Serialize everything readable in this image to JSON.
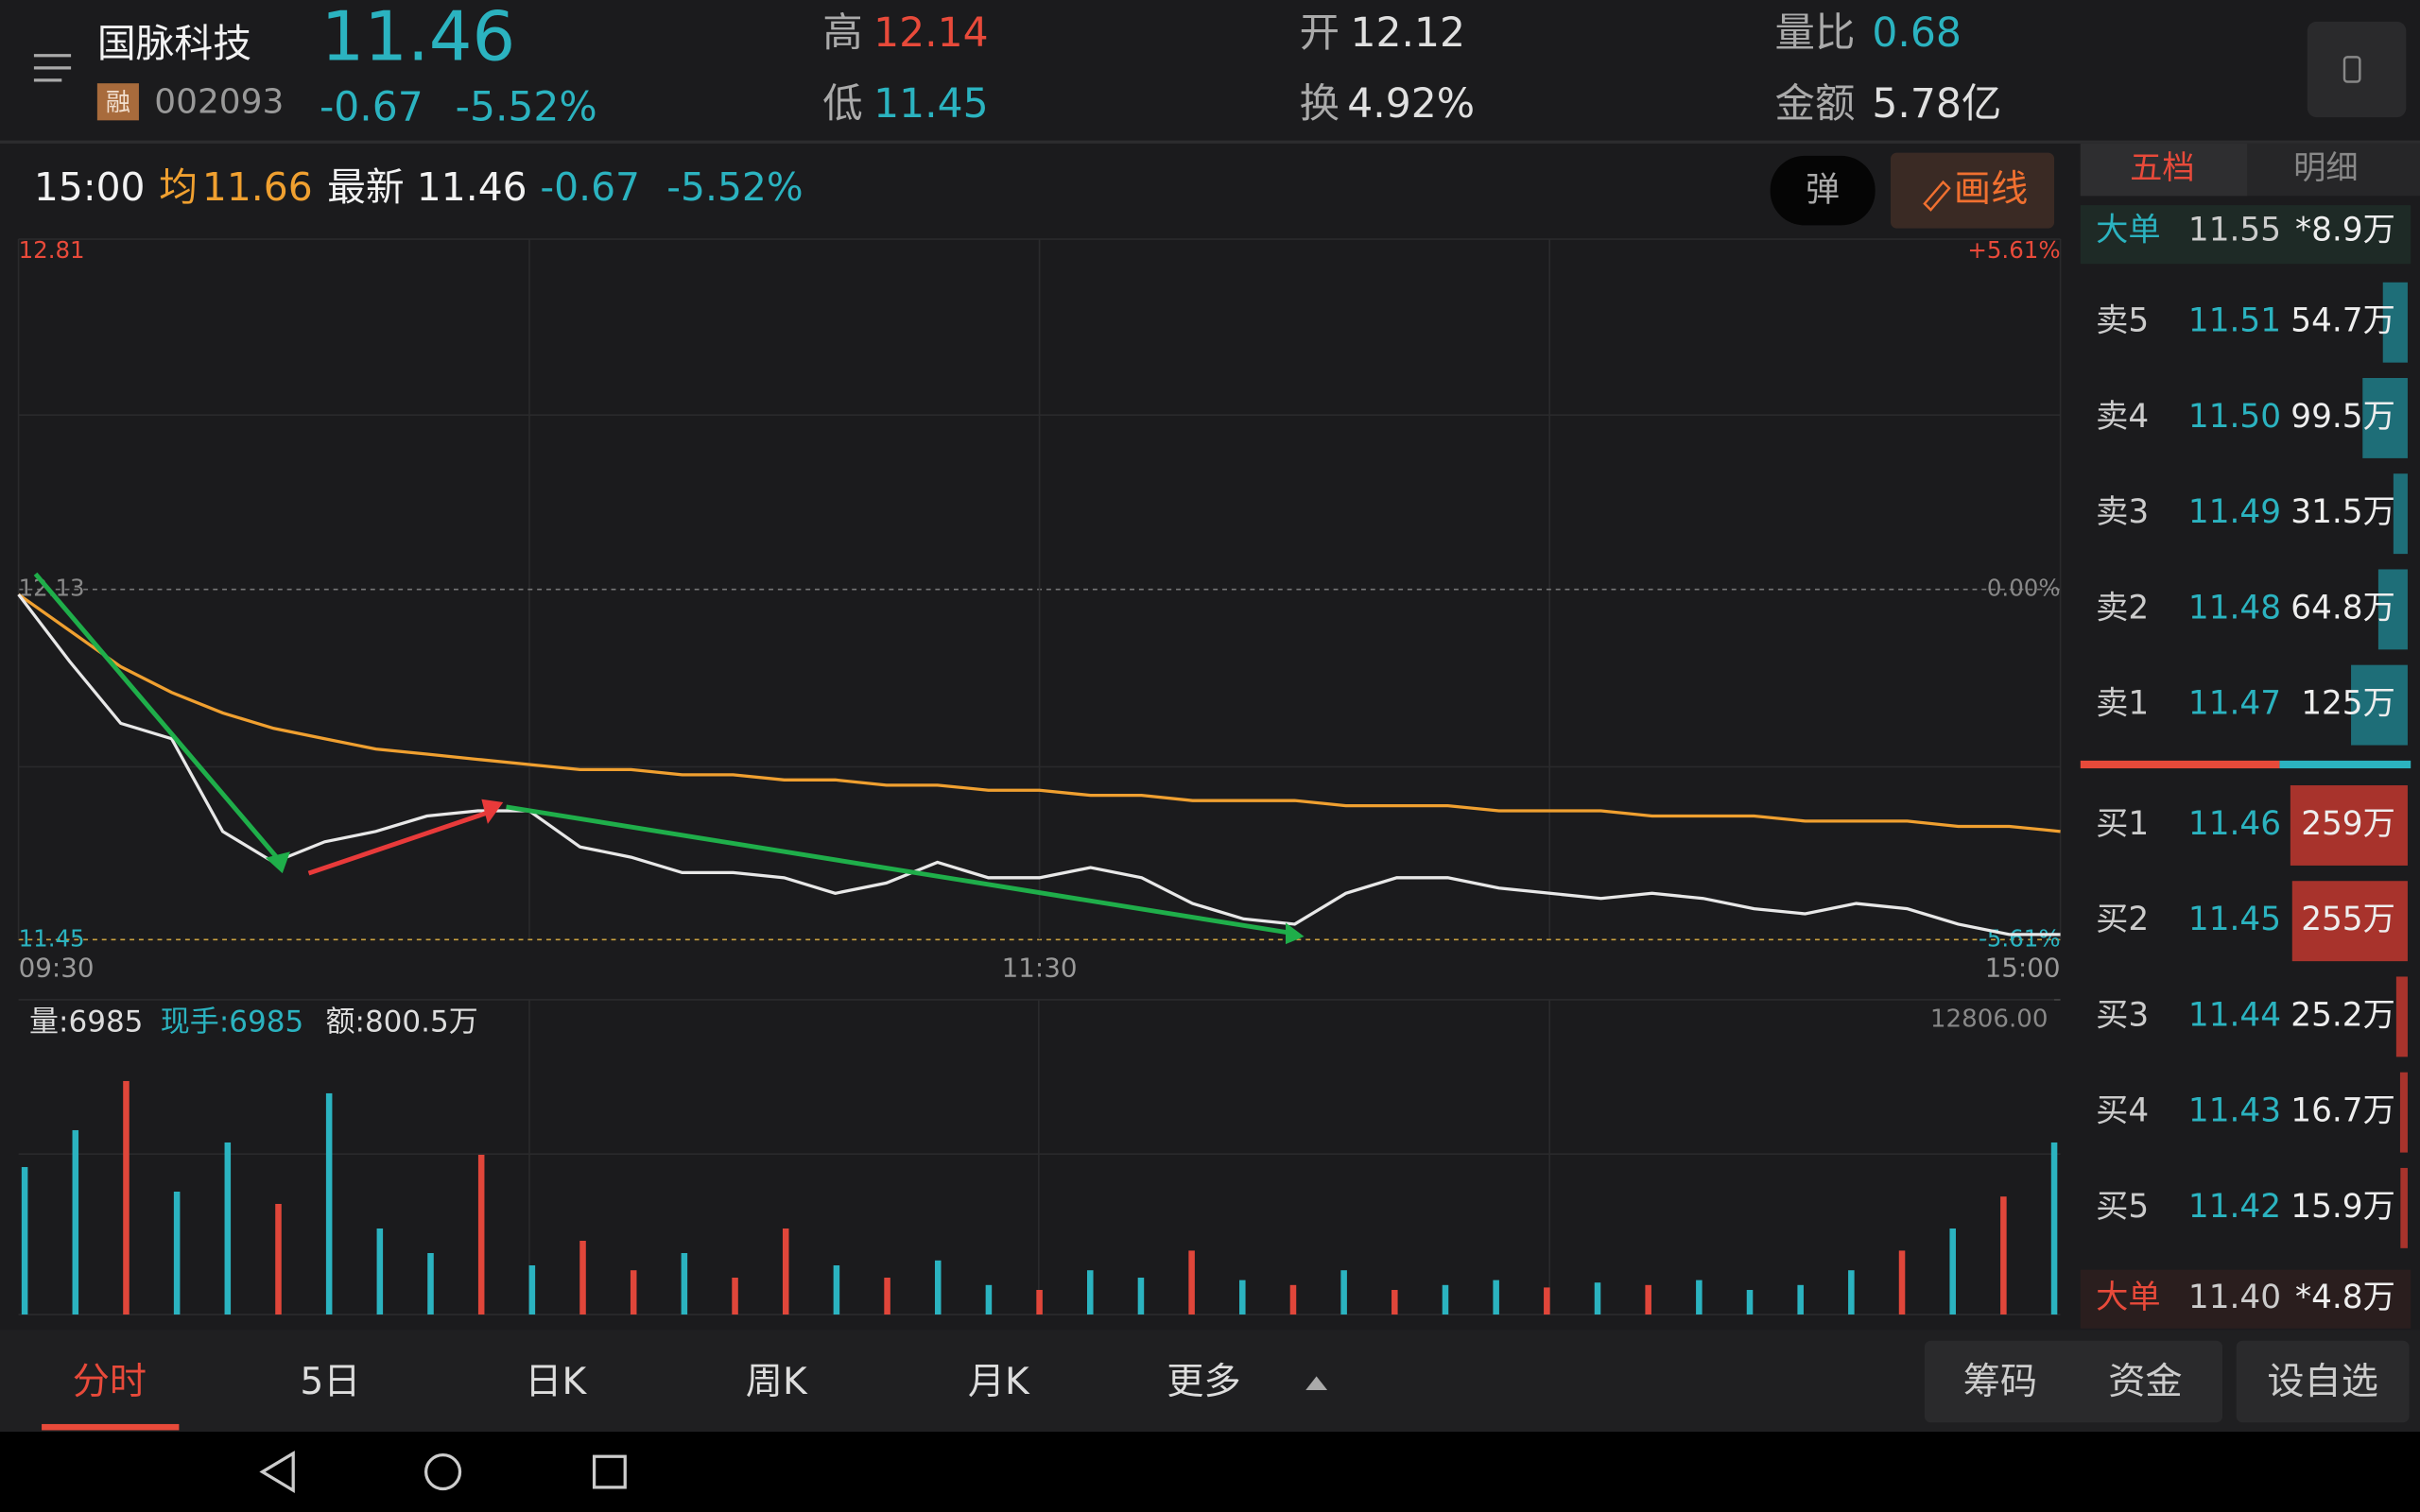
{
  "header": {
    "name": "国脉科技",
    "tag": "融",
    "code": "002093",
    "price": "11.46",
    "change": "-0.67",
    "change_pct": "-5.52%",
    "high_label": "高",
    "high": "12.14",
    "low_label": "低",
    "low": "11.45",
    "open_label": "开",
    "open": "12.12",
    "turnover_label": "换",
    "turnover": "4.92%",
    "ratio_label": "量比",
    "ratio": "0.68",
    "amount_label": "金额",
    "amount": "5.78亿"
  },
  "info_bar": {
    "time": "15:00",
    "avg_label": "均",
    "avg": "11.66",
    "latest_label": "最新",
    "latest": "11.46",
    "change": "-0.67",
    "change_pct": "-5.52%",
    "float_button": "弹",
    "draw_button": "画线"
  },
  "chart_data": [
    {
      "type": "line",
      "x": [
        0,
        6,
        12,
        18,
        24,
        30,
        36,
        42,
        48,
        54,
        60,
        66,
        72,
        78,
        84,
        90,
        96,
        102,
        108,
        114,
        120,
        126,
        132,
        138,
        144,
        150,
        156,
        162,
        168,
        174,
        180,
        186,
        192,
        198,
        204,
        210,
        216,
        222,
        228,
        234,
        240
      ],
      "xlim": [
        0,
        240
      ],
      "xticks": [
        {
          "value": 0,
          "label": "09:30"
        },
        {
          "value": 120,
          "label": "11:30"
        },
        {
          "value": 240,
          "label": "15:00"
        }
      ],
      "ylim": [
        11.45,
        12.81
      ],
      "yticks": [
        11.45,
        12.13,
        12.81
      ],
      "y2lim": [
        -5.61,
        5.61
      ],
      "y2ticks": [
        {
          "value": -5.61,
          "label": "-5.61%"
        },
        {
          "value": 0,
          "label": "0.00%"
        },
        {
          "value": 5.61,
          "label": "+5.61%"
        }
      ],
      "series": [
        {
          "color": "#e8e8e8",
          "values": [
            12.12,
            11.99,
            11.87,
            11.84,
            11.66,
            11.6,
            11.64,
            11.66,
            11.69,
            11.7,
            11.7,
            11.63,
            11.61,
            11.58,
            11.58,
            11.57,
            11.54,
            11.56,
            11.6,
            11.57,
            11.57,
            11.59,
            11.57,
            11.52,
            11.49,
            11.48,
            11.54,
            11.57,
            11.57,
            11.55,
            11.54,
            11.53,
            11.54,
            11.53,
            11.51,
            11.5,
            11.52,
            11.51,
            11.48,
            11.46,
            11.46
          ]
        },
        {
          "color": "#f0a030",
          "values": [
            12.12,
            12.05,
            11.98,
            11.93,
            11.89,
            11.86,
            11.84,
            11.82,
            11.81,
            11.8,
            11.79,
            11.78,
            11.78,
            11.77,
            11.77,
            11.76,
            11.76,
            11.75,
            11.75,
            11.74,
            11.74,
            11.73,
            11.73,
            11.72,
            11.72,
            11.72,
            11.71,
            11.71,
            11.71,
            11.7,
            11.7,
            11.7,
            11.69,
            11.69,
            11.69,
            11.68,
            11.68,
            11.68,
            11.67,
            11.67,
            11.66
          ]
        }
      ]
    },
    {
      "type": "bar",
      "volume_label": "量:6985",
      "hand_label": "现手:6985",
      "amount_label": "额:800.5万",
      "x": [
        0,
        6,
        12,
        18,
        24,
        30,
        36,
        42,
        48,
        54,
        60,
        66,
        72,
        78,
        84,
        90,
        96,
        102,
        108,
        114,
        120,
        126,
        132,
        138,
        144,
        150,
        156,
        162,
        168,
        174,
        180,
        186,
        192,
        198,
        204,
        210,
        216,
        222,
        228,
        234,
        240
      ],
      "xlim": [
        0,
        240
      ],
      "ylim": [
        0,
        12806
      ],
      "yticks": [
        {
          "value": 12806,
          "label": "12806.00"
        }
      ],
      "values": [
        6000,
        7500,
        9500,
        5000,
        7000,
        4500,
        9000,
        3500,
        2500,
        6500,
        2000,
        3000,
        1800,
        2500,
        1500,
        3500,
        2000,
        1500,
        2200,
        1200,
        1000,
        1800,
        1500,
        2600,
        1400,
        1200,
        1800,
        1000,
        1200,
        1400,
        1100,
        1300,
        1200,
        1400,
        1000,
        1200,
        1800,
        2600,
        3500,
        4800,
        7000
      ],
      "colors": [
        "#2bb3c0",
        "#2bb3c0",
        "#e0463a",
        "#2bb3c0",
        "#2bb3c0",
        "#e0463a",
        "#2bb3c0",
        "#2bb3c0",
        "#2bb3c0",
        "#e0463a",
        "#2bb3c0",
        "#e0463a",
        "#e0463a",
        "#2bb3c0",
        "#e0463a",
        "#e0463a",
        "#2bb3c0",
        "#e0463a",
        "#2bb3c0",
        "#2bb3c0",
        "#e0463a",
        "#2bb3c0",
        "#2bb3c0",
        "#e0463a",
        "#2bb3c0",
        "#e0463a",
        "#2bb3c0",
        "#e0463a",
        "#2bb3c0",
        "#2bb3c0",
        "#e0463a",
        "#2bb3c0",
        "#e0463a",
        "#2bb3c0",
        "#2bb3c0",
        "#2bb3c0",
        "#2bb3c0",
        "#e0463a",
        "#2bb3c0",
        "#e0463a",
        "#2bb3c0"
      ]
    }
  ],
  "order_book": {
    "tabs": [
      "五档",
      "明细"
    ],
    "big_sell": {
      "label": "大单",
      "price": "11.55",
      "volume": "*8.9万"
    },
    "asks": [
      {
        "label": "卖5",
        "price": "11.51",
        "volume": 54.7,
        "volume_label": "54.7万"
      },
      {
        "label": "卖4",
        "price": "11.50",
        "volume": 99.5,
        "volume_label": "99.5万"
      },
      {
        "label": "卖3",
        "price": "11.49",
        "volume": 31.5,
        "volume_label": "31.5万"
      },
      {
        "label": "卖2",
        "price": "11.48",
        "volume": 64.8,
        "volume_label": "64.8万"
      },
      {
        "label": "卖1",
        "price": "11.47",
        "volume": 125,
        "volume_label": "125万"
      }
    ],
    "bids": [
      {
        "label": "买1",
        "price": "11.46",
        "volume": 259,
        "volume_label": "259万"
      },
      {
        "label": "买2",
        "price": "11.45",
        "volume": 255,
        "volume_label": "255万"
      },
      {
        "label": "买3",
        "price": "11.44",
        "volume": 25.2,
        "volume_label": "25.2万"
      },
      {
        "label": "买4",
        "price": "11.43",
        "volume": 16.7,
        "volume_label": "16.7万"
      },
      {
        "label": "买5",
        "price": "11.42",
        "volume": 15.9,
        "volume_label": "15.9万"
      }
    ],
    "big_buy": {
      "label": "大单",
      "price": "11.40",
      "volume": "*4.8万"
    }
  },
  "tabs": [
    "分时",
    "5日",
    "日K",
    "周K",
    "月K",
    "更多"
  ],
  "right_buttons": [
    "筹码",
    "资金",
    "设自选"
  ]
}
